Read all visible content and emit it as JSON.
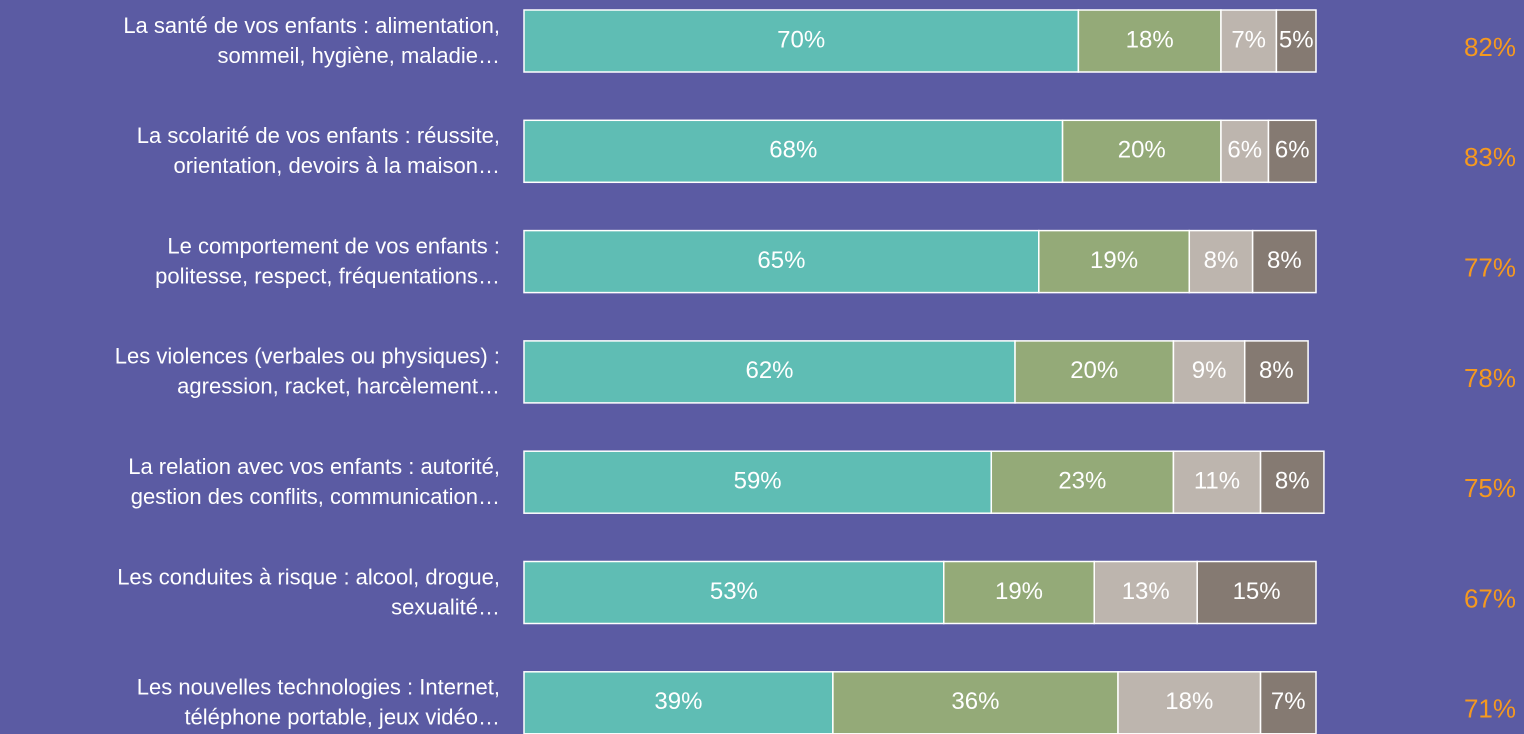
{
  "chart_data": {
    "type": "stacked-bar-horizontal",
    "categories": [
      [
        "La santé de vos enfants : alimentation,",
        "sommeil, hygiène, maladie…"
      ],
      [
        "La scolarité de vos enfants : réussite,",
        "orientation, devoirs à la maison…"
      ],
      [
        "Le comportement de vos enfants :",
        "politesse, respect, fréquentations…"
      ],
      [
        "Les violences (verbales ou physiques) :",
        "agression, racket, harcèlement…"
      ],
      [
        "La relation avec vos enfants : autorité,",
        "gestion des conflits, communication…"
      ],
      [
        "Les conduites à risque : alcool, drogue,",
        "sexualité…"
      ],
      [
        "Les nouvelles technologies : Internet,",
        "téléphone portable, jeux vidéo…"
      ]
    ],
    "series": [
      {
        "color": "#5fbdb4",
        "values": [
          70,
          68,
          65,
          62,
          59,
          53,
          39
        ],
        "value_labels": [
          "70%",
          "68%",
          "65%",
          "62%",
          "59%",
          "53%",
          "39%"
        ]
      },
      {
        "color": "#94aa78",
        "values": [
          18,
          20,
          19,
          20,
          23,
          19,
          36
        ],
        "value_labels": [
          "18%",
          "20%",
          "19%",
          "20%",
          "23%",
          "19%",
          "36%"
        ]
      },
      {
        "color": "#bdb5ae",
        "values": [
          7,
          6,
          8,
          9,
          11,
          13,
          18
        ],
        "value_labels": [
          "7%",
          "6%",
          "8%",
          "9%",
          "11%",
          "13%",
          "18%"
        ]
      },
      {
        "color": "#857a72",
        "values": [
          5,
          6,
          8,
          8,
          8,
          15,
          7
        ],
        "value_labels": [
          "5%",
          "6%",
          "8%",
          "8%",
          "8%",
          "15%",
          "7%"
        ]
      }
    ],
    "side_values": [
      82,
      83,
      77,
      78,
      75,
      67,
      71
    ],
    "side_value_labels": [
      "82%",
      "83%",
      "77%",
      "78%",
      "75%",
      "67%",
      "71%"
    ],
    "side_color": "#f5991f",
    "xlim": [
      0,
      100
    ]
  }
}
